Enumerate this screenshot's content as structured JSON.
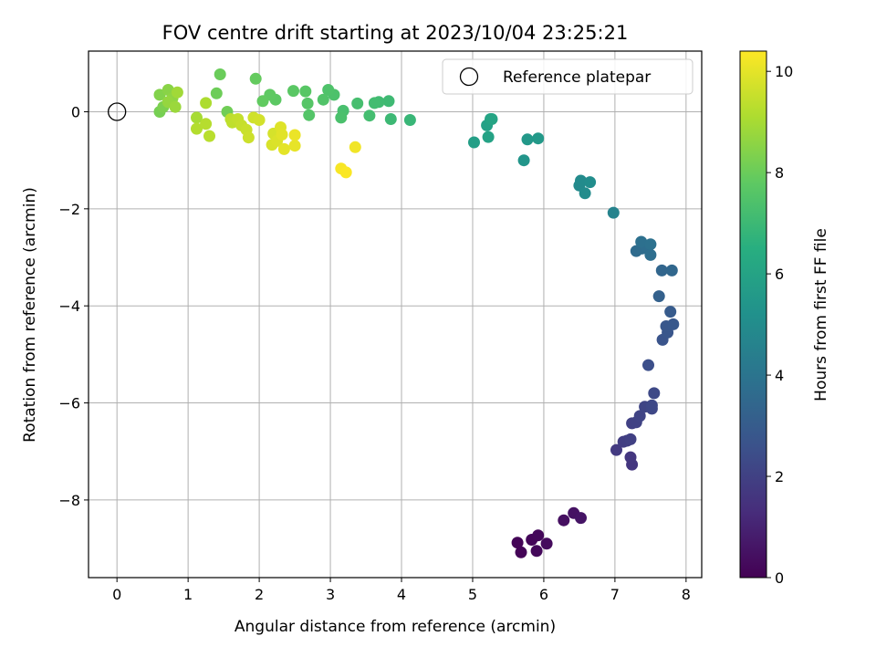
{
  "chart_data": {
    "type": "scatter",
    "title": "FOV centre drift starting at 2023/10/04 23:25:21",
    "xlabel": "Angular distance from reference (arcmin)",
    "ylabel": "Rotation from reference (arcmin)",
    "xlim": [
      -0.4,
      8.22
    ],
    "ylim": [
      -9.6,
      1.25
    ],
    "xticks": [
      0,
      1,
      2,
      3,
      4,
      5,
      6,
      7,
      8
    ],
    "yticks": [
      0,
      -2,
      -4,
      -6,
      -8
    ],
    "grid": true,
    "legend": {
      "entries": [
        "Reference platepar"
      ],
      "placement": "top-right"
    },
    "reference_point": {
      "x": 0,
      "y": 0
    },
    "colorbar": {
      "label": "Hours from first FF file",
      "colormap": "viridis",
      "range": [
        0,
        10.4
      ],
      "ticks": [
        0,
        2,
        4,
        6,
        8,
        10
      ]
    },
    "points": [
      {
        "x": 5.63,
        "y": -8.88,
        "t": 0.1
      },
      {
        "x": 5.68,
        "y": -9.08,
        "t": 0.1
      },
      {
        "x": 5.83,
        "y": -8.82,
        "t": 0.15
      },
      {
        "x": 5.9,
        "y": -9.05,
        "t": 0.2
      },
      {
        "x": 5.92,
        "y": -8.73,
        "t": 0.2
      },
      {
        "x": 6.04,
        "y": -8.9,
        "t": 0.3
      },
      {
        "x": 6.28,
        "y": -8.42,
        "t": 0.4
      },
      {
        "x": 6.42,
        "y": -8.27,
        "t": 0.5
      },
      {
        "x": 6.52,
        "y": -8.37,
        "t": 0.55
      },
      {
        "x": 7.24,
        "y": -7.27,
        "t": 1.6
      },
      {
        "x": 7.22,
        "y": -7.12,
        "t": 1.65
      },
      {
        "x": 7.02,
        "y": -6.97,
        "t": 1.75
      },
      {
        "x": 7.12,
        "y": -6.8,
        "t": 1.85
      },
      {
        "x": 7.17,
        "y": -6.78,
        "t": 1.9
      },
      {
        "x": 7.22,
        "y": -6.75,
        "t": 1.95
      },
      {
        "x": 7.24,
        "y": -6.42,
        "t": 2.0
      },
      {
        "x": 7.3,
        "y": -6.4,
        "t": 2.05
      },
      {
        "x": 7.35,
        "y": -6.27,
        "t": 2.1
      },
      {
        "x": 7.42,
        "y": -6.08,
        "t": 2.15
      },
      {
        "x": 7.52,
        "y": -6.12,
        "t": 2.2
      },
      {
        "x": 7.52,
        "y": -6.05,
        "t": 2.25
      },
      {
        "x": 7.55,
        "y": -5.8,
        "t": 2.3
      },
      {
        "x": 7.47,
        "y": -5.22,
        "t": 2.5
      },
      {
        "x": 7.67,
        "y": -4.7,
        "t": 2.7
      },
      {
        "x": 7.74,
        "y": -4.55,
        "t": 2.75
      },
      {
        "x": 7.72,
        "y": -4.42,
        "t": 2.8
      },
      {
        "x": 7.82,
        "y": -4.38,
        "t": 2.85
      },
      {
        "x": 7.78,
        "y": -4.12,
        "t": 2.95
      },
      {
        "x": 7.62,
        "y": -3.8,
        "t": 3.2
      },
      {
        "x": 7.66,
        "y": -3.27,
        "t": 3.4
      },
      {
        "x": 7.8,
        "y": -3.27,
        "t": 3.45
      },
      {
        "x": 7.3,
        "y": -2.87,
        "t": 3.6
      },
      {
        "x": 7.38,
        "y": -2.82,
        "t": 3.65
      },
      {
        "x": 7.45,
        "y": -2.78,
        "t": 3.7
      },
      {
        "x": 7.5,
        "y": -2.95,
        "t": 3.75
      },
      {
        "x": 7.37,
        "y": -2.68,
        "t": 3.8
      },
      {
        "x": 7.5,
        "y": -2.73,
        "t": 3.85
      },
      {
        "x": 6.98,
        "y": -2.08,
        "t": 4.6
      },
      {
        "x": 6.5,
        "y": -1.52,
        "t": 4.9
      },
      {
        "x": 6.52,
        "y": -1.42,
        "t": 4.95
      },
      {
        "x": 6.58,
        "y": -1.68,
        "t": 5.0
      },
      {
        "x": 6.65,
        "y": -1.45,
        "t": 5.05
      },
      {
        "x": 5.72,
        "y": -1.0,
        "t": 5.4
      },
      {
        "x": 5.77,
        "y": -0.57,
        "t": 5.5
      },
      {
        "x": 5.92,
        "y": -0.55,
        "t": 5.55
      },
      {
        "x": 5.02,
        "y": -0.63,
        "t": 5.8
      },
      {
        "x": 5.2,
        "y": -0.28,
        "t": 5.9
      },
      {
        "x": 5.22,
        "y": -0.52,
        "t": 5.95
      },
      {
        "x": 5.25,
        "y": -0.15,
        "t": 6.0
      },
      {
        "x": 5.27,
        "y": -0.15,
        "t": 6.05
      },
      {
        "x": 4.12,
        "y": -0.17,
        "t": 6.9
      },
      {
        "x": 3.85,
        "y": -0.15,
        "t": 7.0
      },
      {
        "x": 3.82,
        "y": 0.22,
        "t": 7.05
      },
      {
        "x": 3.68,
        "y": 0.2,
        "t": 7.1
      },
      {
        "x": 3.62,
        "y": 0.18,
        "t": 7.15
      },
      {
        "x": 3.55,
        "y": -0.08,
        "t": 7.2
      },
      {
        "x": 3.38,
        "y": 0.17,
        "t": 7.25
      },
      {
        "x": 3.18,
        "y": 0.02,
        "t": 7.3
      },
      {
        "x": 3.15,
        "y": -0.12,
        "t": 7.35
      },
      {
        "x": 3.05,
        "y": 0.35,
        "t": 7.4
      },
      {
        "x": 2.97,
        "y": 0.45,
        "t": 7.45
      },
      {
        "x": 2.9,
        "y": 0.25,
        "t": 7.5
      },
      {
        "x": 2.7,
        "y": -0.07,
        "t": 7.55
      },
      {
        "x": 2.68,
        "y": 0.17,
        "t": 7.6
      },
      {
        "x": 2.65,
        "y": 0.42,
        "t": 7.65
      },
      {
        "x": 2.48,
        "y": 0.43,
        "t": 7.7
      },
      {
        "x": 2.23,
        "y": 0.25,
        "t": 7.75
      },
      {
        "x": 2.15,
        "y": 0.35,
        "t": 7.8
      },
      {
        "x": 2.05,
        "y": 0.22,
        "t": 7.85
      },
      {
        "x": 1.95,
        "y": 0.68,
        "t": 7.9
      },
      {
        "x": 1.45,
        "y": 0.77,
        "t": 8.0
      },
      {
        "x": 1.4,
        "y": 0.38,
        "t": 8.05
      },
      {
        "x": 1.55,
        "y": 0.0,
        "t": 8.1
      },
      {
        "x": 0.6,
        "y": 0.0,
        "t": 8.2
      },
      {
        "x": 0.65,
        "y": 0.1,
        "t": 8.3
      },
      {
        "x": 0.6,
        "y": 0.35,
        "t": 8.4
      },
      {
        "x": 0.72,
        "y": 0.45,
        "t": 8.5
      },
      {
        "x": 0.78,
        "y": 0.28,
        "t": 8.6
      },
      {
        "x": 0.72,
        "y": 0.2,
        "t": 8.7
      },
      {
        "x": 0.82,
        "y": 0.1,
        "t": 8.8
      },
      {
        "x": 0.85,
        "y": 0.4,
        "t": 8.9
      },
      {
        "x": 1.12,
        "y": -0.12,
        "t": 9.0
      },
      {
        "x": 1.25,
        "y": 0.18,
        "t": 9.1
      },
      {
        "x": 1.12,
        "y": -0.35,
        "t": 9.2
      },
      {
        "x": 1.25,
        "y": -0.25,
        "t": 9.25
      },
      {
        "x": 1.3,
        "y": -0.5,
        "t": 9.3
      },
      {
        "x": 1.6,
        "y": -0.15,
        "t": 9.35
      },
      {
        "x": 1.62,
        "y": -0.22,
        "t": 9.4
      },
      {
        "x": 1.7,
        "y": -0.15,
        "t": 9.45
      },
      {
        "x": 1.75,
        "y": -0.28,
        "t": 9.5
      },
      {
        "x": 1.82,
        "y": -0.37,
        "t": 9.55
      },
      {
        "x": 1.85,
        "y": -0.53,
        "t": 9.6
      },
      {
        "x": 1.92,
        "y": -0.12,
        "t": 9.65
      },
      {
        "x": 2.0,
        "y": -0.17,
        "t": 9.7
      },
      {
        "x": 2.2,
        "y": -0.45,
        "t": 9.75
      },
      {
        "x": 2.18,
        "y": -0.68,
        "t": 9.8
      },
      {
        "x": 2.25,
        "y": -0.6,
        "t": 9.85
      },
      {
        "x": 2.3,
        "y": -0.32,
        "t": 9.9
      },
      {
        "x": 2.32,
        "y": -0.47,
        "t": 9.95
      },
      {
        "x": 2.35,
        "y": -0.77,
        "t": 10.0
      },
      {
        "x": 2.5,
        "y": -0.7,
        "t": 10.05
      },
      {
        "x": 2.5,
        "y": -0.48,
        "t": 10.1
      },
      {
        "x": 3.35,
        "y": -0.73,
        "t": 10.2
      },
      {
        "x": 3.15,
        "y": -1.17,
        "t": 10.3
      },
      {
        "x": 3.22,
        "y": -1.25,
        "t": 10.35
      }
    ]
  }
}
